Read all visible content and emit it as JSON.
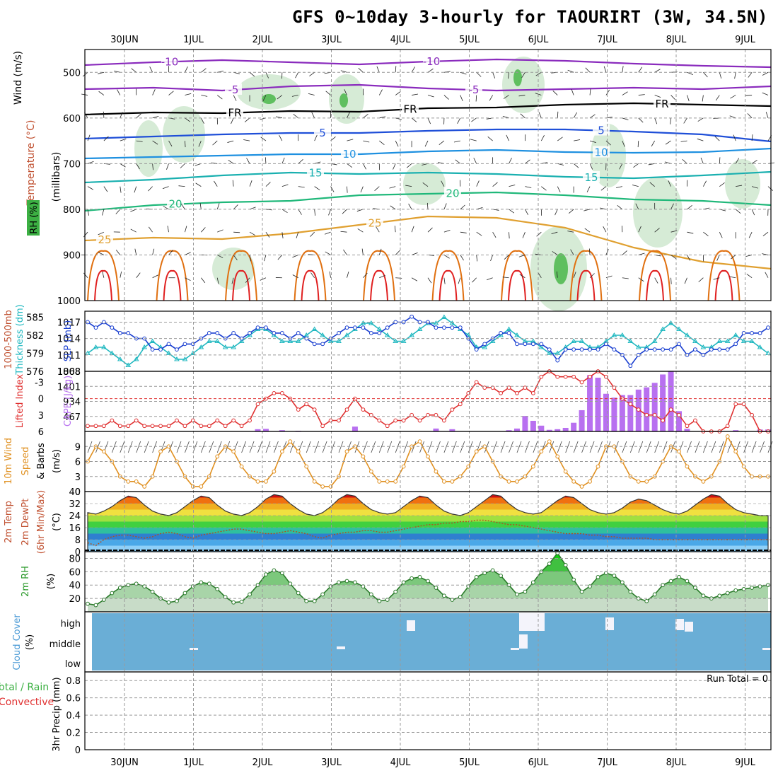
{
  "title": "GFS 0~10day 3-hourly for TAOURIRT (3W, 34.5N)",
  "dates": [
    "30JUN",
    "1JUL",
    "2JUL",
    "3JUL",
    "4JUL",
    "5JUL",
    "6JUL",
    "7JUL",
    "8JUL",
    "9JUL"
  ],
  "colors": {
    "panel_border": "#000000",
    "grid": "#999999",
    "isotherm_minus10": "#8a2bbd",
    "isotherm_minus5": "#8a2bbd",
    "isotherm_FR": "#000000",
    "isotherm_5": "#1f4fd8",
    "isotherm_10": "#1e90e0",
    "isotherm_15": "#1ab0b0",
    "isotherm_20": "#20b87a",
    "isotherm_25": "#e0a030",
    "rh_shade": "#cfe8cf",
    "slp": "#1a3fd0",
    "thickness": "#20b8c0",
    "lifted_index": "#e03030",
    "cape": "#b870f0",
    "wind10m": "#e09020",
    "temp_band_hot": "#d01010",
    "temp_band_cool": "#2f8fd8",
    "rh2m": "#40b040",
    "cloud_bg": "#6aaed6",
    "cloud_block": "#f4f4fb"
  },
  "panels": {
    "upper": {
      "y_label_wind": "Wind (m/s)",
      "y_label_temp": "Temperature (°C)",
      "y_label_rh": "RH (%)",
      "y_label_pressure": "(millibars)",
      "y_ticks": [
        "500",
        "600",
        "700",
        "800",
        "900",
        "1000"
      ],
      "isotherm_labels": [
        "-10",
        "-5",
        "FR",
        "5",
        "10",
        "15",
        "20",
        "25"
      ]
    },
    "slp": {
      "y_label_left": "1000-500mb",
      "y_label_left2": "Thickness (dm)",
      "y_label_right": "SLP (mb)",
      "y_ticks_left": [
        "585",
        "582",
        "579",
        "576"
      ],
      "y_ticks_right": [
        "1017",
        "1014",
        "1011",
        "1008"
      ]
    },
    "cape": {
      "y_label_left": "Lifted Index",
      "y_label_right": "CAPE (J/kg)",
      "y_ticks_left": [
        "-3",
        "0",
        "3",
        "6"
      ],
      "y_ticks_right": [
        "1868",
        "1401",
        "934",
        "467"
      ]
    },
    "wind10m": {
      "y_label1": "10m Wind",
      "y_label2": "Speed",
      "y_label3": "& Barbs",
      "y_label_unit": "(m/s)",
      "y_ticks": [
        "9",
        "6",
        "3",
        "0"
      ]
    },
    "temp2m": {
      "y_label1": "2m Temp",
      "y_label2": "2m DewPt",
      "y_label3": "(6hr Min/Max)",
      "y_label_unit": "(°C)",
      "y_ticks": [
        "40",
        "32",
        "24",
        "16",
        "8",
        "0"
      ]
    },
    "rh2m": {
      "y_label": "2m RH",
      "y_label_unit": "(%)",
      "y_ticks": [
        "80",
        "60",
        "40",
        "20"
      ]
    },
    "cloud": {
      "y_label": "Cloud Cover",
      "y_label_unit": "(%)",
      "levels": [
        "high",
        "middle",
        "low"
      ]
    },
    "precip": {
      "y_label_total": "Total / Rain",
      "y_label_conv": "Convective",
      "y_label_precip": "3hr Precip (mm)",
      "y_ticks": [
        "0.8",
        "0.6",
        "0.4",
        "0.2",
        "0"
      ],
      "run_total": "Run Total = 0"
    }
  },
  "chart_data": [
    {
      "type": "line",
      "title": "SLP (mb)",
      "x_step_hours": 3,
      "ylim": [
        1008,
        1019
      ],
      "series": [
        {
          "name": "SLP (mb)",
          "values": [
            1017,
            1016,
            1017,
            1016,
            1015,
            1015,
            1014,
            1014,
            1012,
            1012,
            1013,
            1012,
            1013,
            1013,
            1014,
            1015,
            1015,
            1014,
            1015,
            1014,
            1015,
            1016,
            1016,
            1015,
            1015,
            1014,
            1015,
            1014,
            1013,
            1013,
            1014,
            1015,
            1016,
            1016,
            1016,
            1015,
            1015,
            1016,
            1017,
            1017,
            1018,
            1017,
            1017,
            1016,
            1016,
            1016,
            1016,
            1014,
            1012,
            1013,
            1014,
            1015,
            1015,
            1013,
            1013,
            1013,
            1013,
            1012,
            1010,
            1012,
            1012,
            1012,
            1012,
            1012,
            1013,
            1012,
            1011,
            1009,
            1011,
            1012,
            1012,
            1012,
            1012,
            1013,
            1011,
            1012,
            1011,
            1012,
            1012,
            1012,
            1013,
            1015,
            1015,
            1015,
            1016
          ]
        }
      ]
    },
    {
      "type": "line",
      "title": "1000-500mb Thickness (dm)",
      "x_step_hours": 3,
      "ylim": [
        576,
        586
      ],
      "series": [
        {
          "name": "1000-500mb Thickness (dm)",
          "values": [
            579,
            580,
            580,
            579,
            578,
            577,
            578,
            580,
            581,
            580,
            579,
            578,
            578,
            579,
            580,
            581,
            581,
            580,
            580,
            581,
            582,
            583,
            583,
            582,
            581,
            581,
            581,
            582,
            583,
            582,
            581,
            581,
            582,
            583,
            584,
            584,
            583,
            582,
            581,
            581,
            582,
            583,
            584,
            584,
            585,
            584,
            583,
            582,
            580,
            580,
            581,
            582,
            583,
            582,
            581,
            581,
            580,
            579,
            579,
            580,
            581,
            581,
            580,
            580,
            581,
            582,
            582,
            581,
            580,
            580,
            581,
            583,
            584,
            583,
            582,
            581,
            580,
            580,
            581,
            581,
            582,
            581,
            581,
            580,
            579
          ]
        }
      ]
    },
    {
      "type": "line",
      "title": "Lifted Index",
      "x_step_hours": 3,
      "ylim": [
        -5,
        6
      ],
      "series": [
        {
          "name": "Lifted Index",
          "values": [
            5,
            5,
            5,
            4,
            5,
            5,
            4,
            5,
            5,
            5,
            5,
            4,
            5,
            4,
            5,
            5,
            4,
            5,
            4,
            5,
            4,
            1,
            0,
            -1,
            -1,
            0,
            2,
            1,
            2,
            5,
            4,
            4,
            2,
            0,
            2,
            3,
            4,
            5,
            4,
            4,
            3,
            4,
            3,
            3,
            4,
            2,
            1,
            -1,
            -3,
            -2,
            -2,
            -1,
            -2,
            -1,
            -2,
            -1,
            -4,
            -5,
            -4,
            -4,
            -4,
            -3,
            -4,
            -5,
            -4,
            -2,
            0,
            1,
            2,
            3,
            3,
            4,
            2,
            3,
            5,
            4,
            6,
            6,
            6,
            5,
            1,
            1,
            3,
            6,
            6
          ]
        }
      ]
    },
    {
      "type": "bar",
      "title": "CAPE (J/kg)",
      "x_step_hours": 3,
      "ylim": [
        0,
        1868
      ],
      "series": [
        {
          "name": "CAPE (J/kg)",
          "values": [
            0,
            0,
            0,
            0,
            0,
            0,
            0,
            0,
            0,
            0,
            0,
            0,
            0,
            0,
            0,
            0,
            0,
            0,
            0,
            0,
            0,
            0,
            0,
            0,
            0,
            0,
            0,
            0,
            0,
            0,
            0,
            0,
            0,
            0,
            80,
            60,
            50,
            0,
            0,
            0,
            0,
            0,
            0,
            0,
            0,
            0,
            0,
            0,
            0,
            0,
            0,
            120,
            0,
            0,
            0,
            0,
            0,
            0,
            0,
            0,
            0,
            0,
            0,
            0,
            0,
            0,
            0,
            0,
            0,
            0,
            0,
            0,
            0,
            0,
            0,
            0,
            0,
            0,
            0,
            0,
            0,
            0,
            0,
            0,
            0
          ]
        }
      ]
    },
    {
      "type": "line",
      "title": "10m Wind Speed (m/s)",
      "x_step_hours": 3,
      "ylim": [
        0,
        12
      ],
      "series": [
        {
          "name": "10m Wind Speed (m/s)",
          "values": [
            6,
            9,
            8,
            6,
            3,
            2,
            2,
            1,
            3,
            8,
            9,
            6,
            3,
            1,
            1,
            3,
            7,
            9,
            8,
            5,
            3,
            2,
            2,
            4,
            8,
            10,
            8,
            5,
            2,
            1,
            1,
            3,
            8,
            9,
            7,
            4,
            2,
            2,
            2,
            5,
            9,
            10,
            7,
            4,
            2,
            2,
            3,
            5,
            8,
            9,
            6,
            3,
            2,
            2,
            3,
            5,
            8,
            10,
            7,
            4,
            2,
            1,
            2,
            5,
            9,
            9,
            6,
            3,
            2,
            2,
            3,
            6,
            9,
            8,
            5,
            3,
            2,
            3,
            6,
            11,
            8,
            5,
            3,
            3,
            3
          ]
        }
      ]
    },
    {
      "type": "area",
      "title": "2m Temp (°C)",
      "x_step_hours": 3,
      "ylim": [
        0,
        40
      ],
      "series": [
        {
          "name": "2m Temp",
          "values": [
            26,
            25,
            27,
            30,
            34,
            37,
            36,
            31,
            27,
            25,
            24,
            26,
            30,
            34,
            37,
            36,
            31,
            27,
            25,
            24,
            26,
            30,
            35,
            38,
            37,
            32,
            28,
            25,
            24,
            26,
            30,
            35,
            38,
            37,
            32,
            28,
            26,
            25,
            26,
            30,
            34,
            37,
            36,
            31,
            27,
            25,
            24,
            26,
            30,
            34,
            38,
            37,
            32,
            28,
            26,
            25,
            26,
            30,
            34,
            37,
            36,
            32,
            28,
            26,
            25,
            26,
            29,
            33,
            35,
            34,
            31,
            28,
            26,
            25,
            27,
            31,
            35,
            38,
            37,
            32,
            28,
            26,
            25,
            24,
            24
          ]
        },
        {
          "name": "2m DewPt",
          "values": [
            6,
            4,
            8,
            10,
            11,
            11,
            10,
            9,
            10,
            12,
            13,
            12,
            10,
            9,
            11,
            12,
            13,
            14,
            15,
            15,
            14,
            13,
            12,
            12,
            13,
            14,
            13,
            12,
            10,
            9,
            11,
            12,
            13,
            13,
            14,
            14,
            13,
            13,
            14,
            15,
            16,
            17,
            18,
            18,
            19,
            19,
            20,
            20,
            21,
            21,
            20,
            19,
            18,
            18,
            17,
            16,
            15,
            14,
            13,
            12,
            12,
            12,
            11,
            11,
            10,
            10,
            9,
            9,
            9,
            9,
            8,
            8,
            8,
            8,
            8,
            8,
            8,
            8,
            8,
            8,
            8,
            8,
            8,
            8,
            8
          ]
        }
      ]
    },
    {
      "type": "area",
      "title": "2m RH (%)",
      "x_step_hours": 3,
      "ylim": [
        0,
        90
      ],
      "series": [
        {
          "name": "2m RH (%)",
          "values": [
            12,
            10,
            18,
            28,
            36,
            40,
            42,
            38,
            30,
            20,
            14,
            16,
            28,
            38,
            44,
            42,
            34,
            22,
            14,
            15,
            26,
            40,
            56,
            62,
            58,
            42,
            28,
            16,
            16,
            26,
            38,
            44,
            46,
            44,
            38,
            26,
            16,
            18,
            30,
            44,
            50,
            52,
            46,
            36,
            24,
            18,
            22,
            38,
            52,
            58,
            62,
            54,
            40,
            26,
            30,
            44,
            60,
            72,
            88,
            70,
            48,
            30,
            38,
            52,
            58,
            54,
            44,
            30,
            20,
            16,
            26,
            40,
            46,
            52,
            46,
            36,
            24,
            20,
            24,
            28,
            32,
            34,
            36,
            38,
            40
          ]
        }
      ]
    },
    {
      "type": "bar",
      "title": "3hr Precip (mm)",
      "x_step_hours": 3,
      "ylim": [
        0,
        0.9
      ],
      "series": [
        {
          "name": "3hr Precip (mm)",
          "values": [
            0,
            0,
            0,
            0,
            0,
            0,
            0,
            0,
            0,
            0,
            0,
            0,
            0,
            0,
            0,
            0,
            0,
            0,
            0,
            0,
            0,
            0,
            0,
            0,
            0,
            0,
            0,
            0,
            0,
            0,
            0,
            0,
            0,
            0,
            0,
            0,
            0,
            0,
            0,
            0,
            0,
            0,
            0,
            0,
            0,
            0,
            0,
            0,
            0,
            0,
            0,
            0,
            0,
            0,
            0,
            0,
            0,
            0,
            0,
            0,
            0,
            0,
            0,
            0,
            0,
            0,
            0,
            0,
            0,
            0,
            0,
            0,
            0,
            0,
            0,
            0,
            0,
            0,
            0,
            0,
            0,
            0,
            0,
            0,
            0
          ]
        }
      ]
    }
  ]
}
